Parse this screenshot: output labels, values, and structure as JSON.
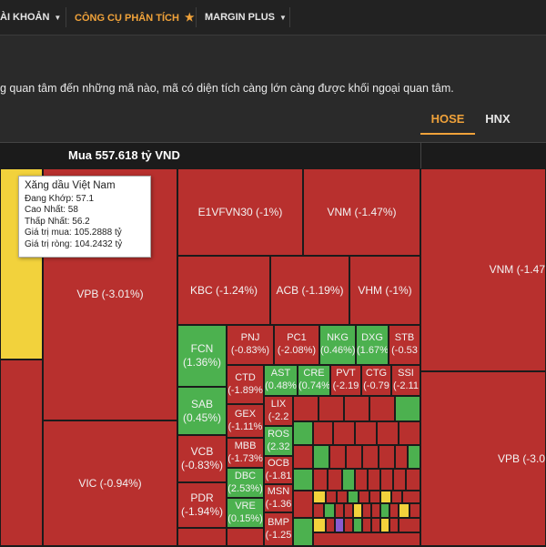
{
  "nav": {
    "items": [
      {
        "label": "ÀI KHOẢN",
        "active": false,
        "caret": true,
        "star": false
      },
      {
        "label": "CÔNG CỤ PHÂN TÍCH",
        "active": true,
        "caret": false,
        "star": true
      },
      {
        "label": "MARGIN PLUS",
        "active": false,
        "caret": true,
        "star": false
      }
    ]
  },
  "description": "g quan tâm đến những mã nào, mã có diện tích càng lớn càng được khối ngoại quan tâm.",
  "tabs": {
    "hose": "HOSE",
    "hnx": "HNX",
    "active": "HOSE"
  },
  "chart": {
    "header": "Mua 557.618 tỷ VND",
    "tiles": [
      {
        "name": "vpb",
        "label": "VPB (-3.01%)",
        "color": "red"
      },
      {
        "name": "vic",
        "label": "VIC (-0.94%)",
        "color": "red"
      },
      {
        "name": "e1vfvn30",
        "label": "E1VFVN30 (-1%)",
        "color": "red"
      },
      {
        "name": "vnm",
        "label": "VNM (-1.47%)",
        "color": "red"
      },
      {
        "name": "kbc",
        "label": "KBC (-1.24%)",
        "color": "red"
      },
      {
        "name": "acb",
        "label": "ACB (-1.19%)",
        "color": "red"
      },
      {
        "name": "vhm",
        "label": "VHM (-1%)",
        "color": "red"
      },
      {
        "name": "fcn",
        "label": "FCN (1.36%)",
        "color": "green"
      },
      {
        "name": "sab",
        "label": "SAB (0.45%)",
        "color": "green"
      },
      {
        "name": "vcb",
        "label": "VCB (-0.83%)",
        "color": "red"
      },
      {
        "name": "pdr",
        "label": "PDR (-1.94%)",
        "color": "red"
      },
      {
        "name": "pnj",
        "label": "PNJ (-0.83%)",
        "color": "red"
      },
      {
        "name": "pc1",
        "label": "PC1 (-2.08%)",
        "color": "red"
      },
      {
        "name": "nkg",
        "label": "NKG (0.46%)",
        "color": "green"
      },
      {
        "name": "dxg",
        "label": "DXG (1.67%)",
        "color": "green"
      },
      {
        "name": "stb",
        "label": "STB (-0.53",
        "color": "red"
      },
      {
        "name": "ctd",
        "label": "CTD (-1.89%",
        "color": "red"
      },
      {
        "name": "gex",
        "label": "GEX (-1.11%",
        "color": "red"
      },
      {
        "name": "mbb",
        "label": "MBB (-1.73%",
        "color": "red"
      },
      {
        "name": "dbc",
        "label": "DBC (2.53%)",
        "color": "green"
      },
      {
        "name": "vre",
        "label": "VRE (0.15%)",
        "color": "green"
      },
      {
        "name": "ast",
        "label": "AST (0.48%",
        "color": "green"
      },
      {
        "name": "cre",
        "label": "CRE (0.74%",
        "color": "green"
      },
      {
        "name": "pvt",
        "label": "PVT (-2.19",
        "color": "red"
      },
      {
        "name": "ctg",
        "label": "CTG (-0.79",
        "color": "red"
      },
      {
        "name": "ssi",
        "label": "SSI (-2.11",
        "color": "red"
      },
      {
        "name": "lix",
        "label": "LIX (-2.2",
        "color": "red"
      },
      {
        "name": "ros",
        "label": "ROS (2.32",
        "color": "green"
      },
      {
        "name": "ocb",
        "label": "OCB (-1.81",
        "color": "red"
      },
      {
        "name": "msn",
        "label": "MSN (-1.36",
        "color": "red"
      },
      {
        "name": "bmp",
        "label": "BMP (-1.25",
        "color": "red"
      },
      {
        "name": "vnm-right",
        "label": "VNM (-1.47",
        "color": "red"
      },
      {
        "name": "vpb-right",
        "label": "VPB (-3.0",
        "color": "red"
      }
    ],
    "tooltip": {
      "title": "Xăng dầu Việt Nam",
      "lines": [
        "Đang Khớp: 57.1",
        "Cao Nhất: 58",
        "Thấp Nhất: 56.2",
        "Giá trị mua: 105.2888 tỷ",
        "Giá trị ròng: 104.2432 tỷ"
      ]
    }
  },
  "colors": {
    "red": "#b8302e",
    "green": "#4cb14f",
    "yellow": "#f2d23c",
    "accent": "#f0a23a"
  }
}
